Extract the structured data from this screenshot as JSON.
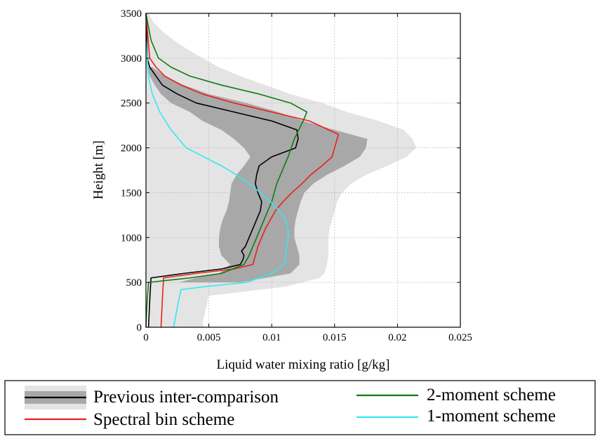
{
  "chart_data": {
    "type": "line",
    "title": "",
    "xlabel": "Liquid water mixing ratio [g/kg]",
    "ylabel": "Height [m]",
    "xlim": [
      0,
      0.025
    ],
    "ylim": [
      0,
      3500
    ],
    "grid": true,
    "x_ticks": [
      0,
      0.005,
      0.01,
      0.015,
      0.02,
      0.025
    ],
    "x_tick_labels": [
      "0",
      "0.005",
      "0.01",
      "0.015",
      "0.02",
      "0.025"
    ],
    "y_ticks": [
      0,
      500,
      1000,
      1500,
      2000,
      2500,
      3000,
      3500
    ],
    "y_tick_labels": [
      "0",
      "500",
      "1000",
      "1500",
      "2000",
      "2500",
      "3000",
      "3500"
    ],
    "bands": [
      {
        "name": "Previous inter-comparison range (outer)",
        "color": "#e4e4e4",
        "heights": [
          0,
          50,
          350,
          450,
          500,
          550,
          600,
          700,
          800,
          900,
          1000,
          1100,
          1200,
          1300,
          1400,
          1500,
          1600,
          1700,
          1800,
          1900,
          2000,
          2100,
          2200,
          2300,
          2400,
          2500,
          2600,
          2700,
          2800,
          2900,
          3000,
          3100,
          3200,
          3300,
          3400,
          3500
        ],
        "lower": [
          0.0002,
          0.0002,
          0.0002,
          0.0001,
          0.0001,
          0.0,
          0.0,
          0.0,
          0.0,
          0.0,
          0.0,
          0.0,
          0.0,
          0.0,
          0.0,
          0.0,
          0.0,
          0.0,
          0.0,
          0.0,
          0.0,
          0.0,
          0.0,
          0.0,
          0.0,
          0.0,
          0.0,
          0.0,
          0.0,
          0.0,
          0.0,
          0.0,
          0.0,
          0.0,
          0.0,
          0.0
        ],
        "upper": [
          0.0046,
          0.0045,
          0.005,
          0.011,
          0.0125,
          0.0138,
          0.0142,
          0.0144,
          0.0145,
          0.0145,
          0.0145,
          0.0146,
          0.0148,
          0.015,
          0.0152,
          0.0156,
          0.0163,
          0.0175,
          0.0192,
          0.0207,
          0.0215,
          0.0212,
          0.0205,
          0.0185,
          0.016,
          0.014,
          0.0115,
          0.0095,
          0.0075,
          0.0058,
          0.0045,
          0.0033,
          0.0022,
          0.0013,
          0.0006,
          0.0002
        ]
      },
      {
        "name": "Previous inter-comparison range (inner)",
        "color": "#a8a8a8",
        "heights": [
          500,
          550,
          600,
          700,
          800,
          900,
          1000,
          1100,
          1200,
          1300,
          1400,
          1500,
          1600,
          1700,
          1800,
          1900,
          2000,
          2100,
          2200,
          2300,
          2400,
          2500,
          2600,
          2700,
          2800,
          2900
        ],
        "lower": [
          0.0026,
          0.004,
          0.0058,
          0.0067,
          0.006,
          0.0058,
          0.0058,
          0.0059,
          0.0061,
          0.0064,
          0.0066,
          0.0067,
          0.0068,
          0.0072,
          0.0078,
          0.0083,
          0.0078,
          0.007,
          0.006,
          0.0045,
          0.0035,
          0.002,
          0.0012,
          0.0007,
          0.0003,
          0.0001
        ],
        "upper": [
          0.0075,
          0.0095,
          0.0115,
          0.0122,
          0.0122,
          0.012,
          0.0118,
          0.0118,
          0.0119,
          0.0121,
          0.0123,
          0.0126,
          0.0133,
          0.0144,
          0.0158,
          0.017,
          0.0175,
          0.0176,
          0.015,
          0.0125,
          0.0105,
          0.008,
          0.005,
          0.003,
          0.0015,
          0.0005
        ]
      }
    ],
    "series": [
      {
        "name": "Previous inter-comparison",
        "color": "#000000",
        "x": [
          0.0002,
          0.0003,
          0.0004,
          0.003,
          0.006,
          0.0075,
          0.0077,
          0.0078,
          0.0076,
          0.0079,
          0.0082,
          0.0085,
          0.0088,
          0.0091,
          0.0092,
          0.0089,
          0.0087,
          0.0088,
          0.009,
          0.01,
          0.0119,
          0.0121,
          0.012,
          0.01,
          0.007,
          0.004,
          0.0025,
          0.0013,
          0.0008,
          0.0003,
          0.0001,
          0.0
        ],
        "y": [
          0,
          300,
          550,
          600,
          650,
          700,
          750,
          800,
          850,
          900,
          1000,
          1100,
          1200,
          1300,
          1400,
          1500,
          1600,
          1700,
          1800,
          1900,
          2000,
          2100,
          2200,
          2300,
          2400,
          2500,
          2600,
          2700,
          2800,
          2900,
          3000,
          3500
        ]
      },
      {
        "name": "Spectral bin scheme",
        "color": "#e8211c",
        "x": [
          0.0012,
          0.0013,
          0.0014,
          0.004,
          0.007,
          0.0085,
          0.0087,
          0.0089,
          0.0092,
          0.0095,
          0.0099,
          0.0103,
          0.0109,
          0.0116,
          0.0124,
          0.0131,
          0.014,
          0.0148,
          0.0153,
          0.013,
          0.01,
          0.007,
          0.0045,
          0.0028,
          0.0015,
          0.0008,
          0.0003,
          0.0
        ],
        "y": [
          0,
          300,
          550,
          600,
          650,
          700,
          800,
          900,
          1000,
          1100,
          1200,
          1300,
          1400,
          1500,
          1600,
          1700,
          1800,
          1900,
          2150,
          2300,
          2400,
          2500,
          2600,
          2700,
          2800,
          2900,
          3000,
          3500
        ]
      },
      {
        "name": "2-moment scheme",
        "color": "#117a11",
        "x": [
          0.0,
          0.0001,
          0.0002,
          0.0035,
          0.006,
          0.0078,
          0.0082,
          0.0085,
          0.0088,
          0.0091,
          0.0094,
          0.0097,
          0.01,
          0.0102,
          0.0104,
          0.0107,
          0.011,
          0.0113,
          0.0118,
          0.0125,
          0.0128,
          0.0115,
          0.009,
          0.006,
          0.0035,
          0.002,
          0.001,
          0.0004,
          0.0
        ],
        "y": [
          0,
          300,
          500,
          550,
          600,
          700,
          800,
          900,
          1000,
          1100,
          1200,
          1300,
          1400,
          1500,
          1600,
          1700,
          1800,
          1900,
          2100,
          2300,
          2400,
          2500,
          2600,
          2700,
          2800,
          2900,
          3000,
          3200,
          3500
        ]
      },
      {
        "name": "1-moment scheme",
        "color": "#33e8f2",
        "x": [
          0.0022,
          0.0026,
          0.0028,
          0.0045,
          0.008,
          0.01,
          0.011,
          0.0112,
          0.0113,
          0.0113,
          0.0111,
          0.0106,
          0.0099,
          0.0091,
          0.0082,
          0.0072,
          0.006,
          0.0046,
          0.0032,
          0.002,
          0.0011,
          0.0005,
          0.0002,
          0.0
        ],
        "y": [
          0,
          300,
          420,
          450,
          500,
          600,
          700,
          900,
          1000,
          1100,
          1200,
          1300,
          1400,
          1500,
          1600,
          1700,
          1800,
          1900,
          2000,
          2200,
          2400,
          2600,
          2800,
          3200
        ]
      }
    ],
    "legend": {
      "placement": "bottom",
      "entries": [
        {
          "label": "Previous inter-comparison",
          "color": "#000000",
          "band": true
        },
        {
          "label": "2-moment scheme",
          "color": "#117a11",
          "band": false
        },
        {
          "label": "Spectral bin scheme",
          "color": "#e8211c",
          "band": false
        },
        {
          "label": "1-moment scheme",
          "color": "#33e8f2",
          "band": false
        }
      ]
    }
  }
}
